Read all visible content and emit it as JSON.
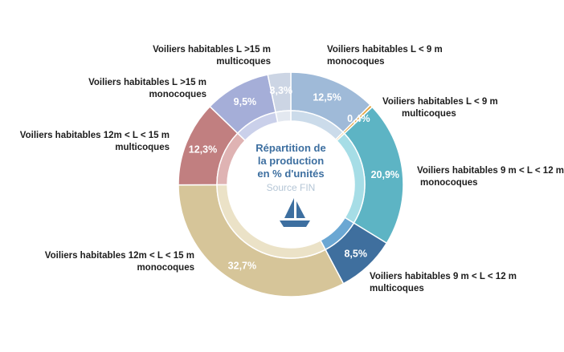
{
  "chart_data": {
    "type": "pie",
    "center_text": {
      "title_lines": [
        "Répartition de",
        "la production",
        "en % d'unités"
      ],
      "source": "Source FIN"
    },
    "colors": {
      "center_text": "#3d6fa0",
      "source_text": "#b5c6d6",
      "boat_icon": "#3d6fa0",
      "label_text": "#1d1d1d",
      "value_text": "#ffffff"
    },
    "icon": "sailboat-icon",
    "slices": [
      {
        "key": "mono-lt9",
        "value": 12.5,
        "value_label": "12,5%",
        "label_lines": [
          "Voiliers habitables L < 9 m",
          "monocoques"
        ],
        "color": "#9fbad8",
        "inner_color": "#cbdbea"
      },
      {
        "key": "multi-lt9",
        "value": 0.4,
        "value_label": "0,4%",
        "label_lines": [
          "Voiliers habitables L < 9 m",
          "multicoques"
        ],
        "color": "#e3a23b",
        "inner_color": "#eccb8f"
      },
      {
        "key": "mono-9-12",
        "value": 20.9,
        "value_label": "20,9%",
        "label_lines": [
          "Voiliers habitables 9 m < L < 12 m",
          "monocoques"
        ],
        "color": "#5db4c4",
        "inner_color": "#a6dde6"
      },
      {
        "key": "multi-9-12",
        "value": 8.5,
        "value_label": "8,5%",
        "label_lines": [
          "Voiliers habitables 9 m < L < 12 m",
          "multicoques"
        ],
        "color": "#3f6f9e",
        "inner_color": "#6ba7d3"
      },
      {
        "key": "mono-12-15",
        "value": 32.7,
        "value_label": "32,7%",
        "label_lines": [
          "Voiliers habitables 12m < L < 15 m",
          "monocoques"
        ],
        "color": "#d6c599",
        "inner_color": "#ebe2c7"
      },
      {
        "key": "multi-12-15",
        "value": 12.3,
        "value_label": "12,3%",
        "label_lines": [
          "Voiliers habitables 12m < L < 15 m",
          "multicoques"
        ],
        "color": "#c17f80",
        "inner_color": "#dfb3b3"
      },
      {
        "key": "mono-gt15",
        "value": 9.5,
        "value_label": "9,5%",
        "label_lines": [
          "Voiliers habitables L >15 m",
          "monocoques"
        ],
        "color": "#a5aed8",
        "inner_color": "#cad0ea"
      },
      {
        "key": "multi-gt15",
        "value": 3.3,
        "value_label": "3,3%",
        "label_lines": [
          "Voiliers habitables L >15 m",
          "multicoques"
        ],
        "color": "#ccd5e4",
        "inner_color": "#e3e8f0"
      }
    ]
  }
}
